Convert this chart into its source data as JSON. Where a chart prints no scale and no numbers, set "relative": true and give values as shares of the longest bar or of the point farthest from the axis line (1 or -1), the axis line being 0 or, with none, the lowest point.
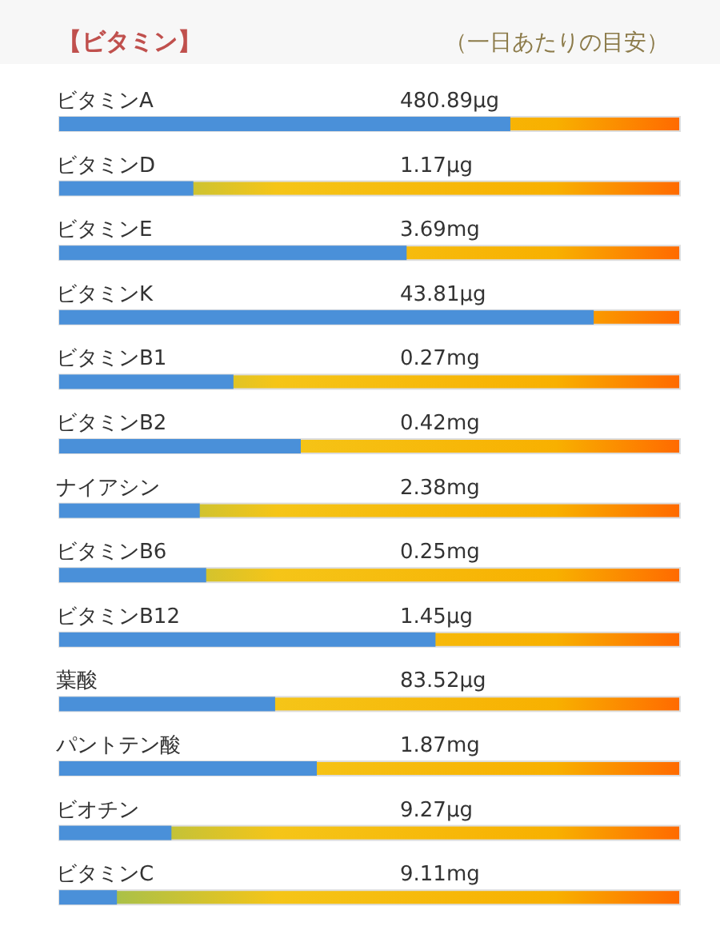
{
  "chart_data": {
    "type": "bar",
    "orientation": "horizontal",
    "relative": true,
    "title": "【ビタミン】",
    "subtitle": "（一日あたりの目安）",
    "color": "#4a90d9",
    "categories": [
      "ビタミンA",
      "ビタミンD",
      "ビタミンE",
      "ビタミンK",
      "ビタミンB1",
      "ビタミンB2",
      "ナイアシン",
      "ビタミンB6",
      "ビタミンB12",
      "葉酸",
      "パントテン酸",
      "ビオチン",
      "ビタミンC"
    ],
    "values": [
      0.844,
      0.251,
      0.65,
      1,
      0.326,
      0.452,
      0.263,
      0.275,
      0.704,
      0.404,
      0.482,
      0.21,
      0.108
    ],
    "annotations": [
      "480.89μg",
      "1.17μg",
      "3.69mg",
      "43.81μg",
      "0.27mg",
      "0.42mg",
      "2.38mg",
      "0.25mg",
      "1.45μg",
      "83.52μg",
      "1.87mg",
      "9.27μg",
      "9.11mg"
    ]
  }
}
